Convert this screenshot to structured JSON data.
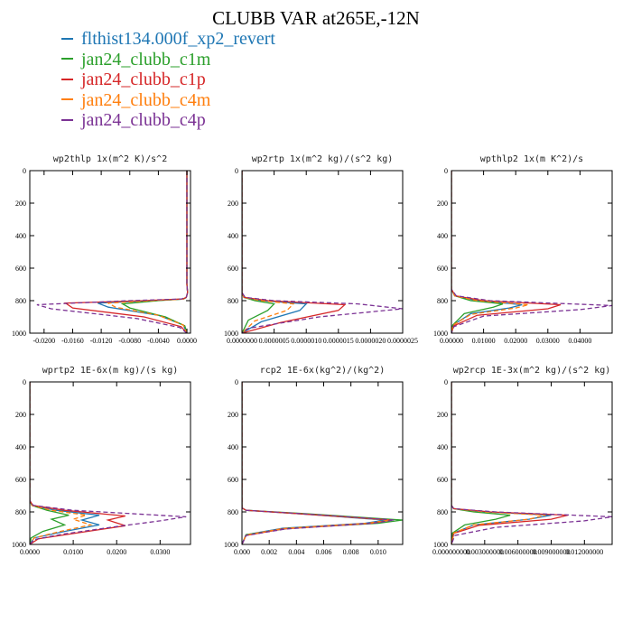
{
  "title": "CLUBB VAR at265E,-12N",
  "legend": [
    {
      "label": "flthist134.000f_xp2_revert",
      "color": "#1f77b4",
      "style": "solid"
    },
    {
      "label": "jan24_clubb_c1m",
      "color": "#2ca02c",
      "style": "solid"
    },
    {
      "label": "jan24_clubb_c1p",
      "color": "#d62728",
      "style": "solid"
    },
    {
      "label": "jan24_clubb_c4m",
      "color": "#ff7f0e",
      "style": "dashed"
    },
    {
      "label": "jan24_clubb_c4p",
      "color": "#7b3294",
      "style": "dashed"
    }
  ],
  "chart_data": [
    {
      "type": "line",
      "title": "wp2thlp  1x(m^2 K)/s^2",
      "xlim": [
        -0.022,
        0.0005
      ],
      "ylim": [
        1000,
        0
      ],
      "yticks": [
        0,
        200,
        400,
        600,
        800,
        1000
      ],
      "xticks": [
        -0.02,
        -0.016,
        -0.012,
        -0.008,
        -0.004,
        0.0
      ],
      "xtick_labels": [
        "-0.0200",
        "-0.0160",
        "-0.0120",
        "-0.0080",
        "-0.0040",
        "0.0000"
      ],
      "series": [
        {
          "name": "flthist134.000f_xp2_revert",
          "x": [
            0,
            0,
            0.0001,
            -0.0001,
            -0.0005,
            -0.005,
            -0.0125,
            -0.011,
            -0.004,
            -0.0005,
            0
          ],
          "y": [
            0,
            700,
            750,
            780,
            790,
            800,
            815,
            840,
            890,
            950,
            1000
          ]
        },
        {
          "name": "jan24_clubb_c1m",
          "x": [
            0,
            0,
            0.0001,
            -0.0001,
            -0.0005,
            -0.004,
            -0.009,
            -0.008,
            -0.003,
            -0.0003,
            0
          ],
          "y": [
            0,
            700,
            750,
            780,
            790,
            800,
            820,
            845,
            900,
            955,
            1000
          ]
        },
        {
          "name": "jan24_clubb_c1p",
          "x": [
            0,
            0,
            0.0001,
            -0.0001,
            -0.0006,
            -0.006,
            -0.017,
            -0.016,
            -0.006,
            -0.0008,
            0
          ],
          "y": [
            0,
            700,
            750,
            780,
            790,
            800,
            815,
            845,
            900,
            960,
            1000
          ]
        },
        {
          "name": "jan24_clubb_c4m",
          "x": [
            0,
            0,
            0.0001,
            -0.0001,
            -0.0005,
            -0.005,
            -0.011,
            -0.01,
            -0.004,
            -0.0005,
            0
          ],
          "y": [
            0,
            700,
            750,
            780,
            790,
            800,
            815,
            840,
            890,
            950,
            1000
          ]
        },
        {
          "name": "jan24_clubb_c4p",
          "x": [
            0,
            0,
            0.0001,
            -0.0001,
            -0.0008,
            -0.008,
            -0.021,
            -0.019,
            -0.007,
            -0.001,
            0
          ],
          "y": [
            0,
            700,
            750,
            780,
            790,
            800,
            825,
            850,
            910,
            965,
            1000
          ]
        }
      ]
    },
    {
      "type": "line",
      "title": "wp2rtp  1x(m^2 kg)/(s^2 kg)",
      "xlim": [
        0,
        2.5e-06
      ],
      "ylim": [
        1000,
        0
      ],
      "yticks": [
        0,
        200,
        400,
        600,
        800,
        1000
      ],
      "xticks": [
        0,
        5e-07,
        1e-06,
        1.5e-06,
        2e-06,
        2.5e-06
      ],
      "xtick_labels": [
        "0.0000000",
        "0.0000005",
        "0.0000010",
        "0.0000015",
        "0.0000020",
        "0.0000025"
      ],
      "series": [
        {
          "name": "flthist134.000f_xp2_revert",
          "x": [
            0,
            0,
            3e-08,
            3e-07,
            1e-06,
            9e-07,
            3e-07,
            0
          ],
          "y": [
            0,
            750,
            780,
            800,
            820,
            860,
            930,
            1000
          ]
        },
        {
          "name": "jan24_clubb_c1m",
          "x": [
            0,
            0,
            3e-08,
            2e-07,
            5e-07,
            4e-07,
            1e-07,
            0
          ],
          "y": [
            0,
            750,
            780,
            800,
            820,
            860,
            920,
            1000
          ]
        },
        {
          "name": "jan24_clubb_c1p",
          "x": [
            0,
            0,
            4e-08,
            4e-07,
            1.6e-06,
            1.5e-06,
            6e-07,
            0
          ],
          "y": [
            0,
            750,
            780,
            800,
            825,
            860,
            935,
            1000
          ]
        },
        {
          "name": "jan24_clubb_c4m",
          "x": [
            0,
            0,
            3e-08,
            3e-07,
            8e-07,
            7e-07,
            2e-07,
            0
          ],
          "y": [
            0,
            750,
            780,
            800,
            820,
            860,
            925,
            1000
          ]
        },
        {
          "name": "jan24_clubb_c4p",
          "x": [
            0,
            0,
            5e-08,
            5e-07,
            1.8e-06,
            2.5e-06,
            1.2e-06,
            1e-07,
            0
          ],
          "y": [
            0,
            750,
            780,
            800,
            820,
            850,
            900,
            970,
            1000
          ]
        }
      ]
    },
    {
      "type": "line",
      "title": "wpthlp2  1x(m K^2)/s",
      "xlim": [
        0,
        0.05
      ],
      "ylim": [
        1000,
        0
      ],
      "yticks": [
        0,
        200,
        400,
        600,
        800,
        1000
      ],
      "xticks": [
        0,
        0.01,
        0.02,
        0.03,
        0.04
      ],
      "xtick_labels": [
        "0.00000",
        "0.01000",
        "0.02000",
        "0.03000",
        "0.04000"
      ],
      "series": [
        {
          "name": "flthist134.000f_xp2_revert",
          "x": [
            0,
            0,
            0.001,
            0.008,
            0.022,
            0.018,
            0.006,
            0.0005,
            0
          ],
          "y": [
            0,
            730,
            770,
            800,
            825,
            845,
            880,
            950,
            1000
          ]
        },
        {
          "name": "jan24_clubb_c1m",
          "x": [
            0,
            0,
            0.001,
            0.006,
            0.016,
            0.013,
            0.004,
            0.0004,
            0
          ],
          "y": [
            0,
            730,
            770,
            800,
            820,
            840,
            880,
            950,
            1000
          ]
        },
        {
          "name": "jan24_clubb_c1p",
          "x": [
            0,
            0,
            0.0012,
            0.01,
            0.034,
            0.03,
            0.008,
            0.0007,
            0
          ],
          "y": [
            0,
            730,
            770,
            800,
            825,
            850,
            890,
            955,
            1000
          ]
        },
        {
          "name": "jan24_clubb_c4m",
          "x": [
            0,
            0,
            0.001,
            0.008,
            0.024,
            0.02,
            0.006,
            0.0005,
            0
          ],
          "y": [
            0,
            730,
            770,
            800,
            825,
            845,
            885,
            950,
            1000
          ]
        },
        {
          "name": "jan24_clubb_c4p",
          "x": [
            0,
            0,
            0.0015,
            0.012,
            0.05,
            0.04,
            0.01,
            0.0008,
            0
          ],
          "y": [
            0,
            730,
            770,
            800,
            830,
            855,
            895,
            960,
            1000
          ]
        }
      ]
    },
    {
      "type": "line",
      "title": "wprtp2  1E-6x(m kg)/(s kg)",
      "xlim": [
        0,
        0.037
      ],
      "ylim": [
        1000,
        0
      ],
      "yticks": [
        0,
        200,
        400,
        600,
        800,
        1000
      ],
      "xticks": [
        0,
        0.01,
        0.02,
        0.03
      ],
      "xtick_labels": [
        "0.0000",
        "0.0100",
        "0.0200",
        "0.0300"
      ],
      "series": [
        {
          "name": "flthist134.000f_xp2_revert",
          "x": [
            0,
            0,
            0.0005,
            0.006,
            0.016,
            0.012,
            0.016,
            0.008,
            0.001,
            0
          ],
          "y": [
            0,
            730,
            760,
            790,
            820,
            850,
            880,
            920,
            960,
            1000
          ]
        },
        {
          "name": "jan24_clubb_c1m",
          "x": [
            0,
            0,
            0.0005,
            0.004,
            0.009,
            0.005,
            0.008,
            0.003,
            0.0003,
            0
          ],
          "y": [
            0,
            730,
            760,
            790,
            820,
            845,
            880,
            920,
            960,
            1000
          ]
        },
        {
          "name": "jan24_clubb_c1p",
          "x": [
            0,
            0,
            0.0007,
            0.008,
            0.022,
            0.018,
            0.022,
            0.012,
            0.002,
            0
          ],
          "y": [
            0,
            730,
            760,
            790,
            825,
            850,
            885,
            925,
            965,
            1000
          ]
        },
        {
          "name": "jan24_clubb_c4m",
          "x": [
            0,
            0,
            0.0005,
            0.005,
            0.013,
            0.01,
            0.014,
            0.007,
            0.001,
            0
          ],
          "y": [
            0,
            730,
            760,
            790,
            820,
            845,
            880,
            920,
            960,
            1000
          ]
        },
        {
          "name": "jan24_clubb_c4p",
          "x": [
            0,
            0,
            0.0008,
            0.01,
            0.036,
            0.03,
            0.02,
            0.008,
            0.001,
            0
          ],
          "y": [
            0,
            730,
            760,
            790,
            830,
            855,
            890,
            935,
            970,
            1000
          ]
        }
      ]
    },
    {
      "type": "line",
      "title": "rcp2  1E-6x(kg^2)/(kg^2)",
      "xlim": [
        0,
        0.0118
      ],
      "ylim": [
        1000,
        0
      ],
      "yticks": [
        0,
        200,
        400,
        600,
        800,
        1000
      ],
      "xticks": [
        0,
        0.002,
        0.004,
        0.006,
        0.008,
        0.01
      ],
      "xtick_labels": [
        "0.000",
        "0.002",
        "0.004",
        "0.006",
        "0.008",
        "0.010"
      ],
      "series": [
        {
          "name": "flthist134.000f_xp2_revert",
          "x": [
            0,
            0,
            0.0003,
            0.004,
            0.0105,
            0.009,
            0.003,
            0.0003,
            0
          ],
          "y": [
            0,
            775,
            790,
            810,
            850,
            870,
            900,
            940,
            1000
          ]
        },
        {
          "name": "jan24_clubb_c1m",
          "x": [
            0,
            0,
            0.0003,
            0.0045,
            0.0118,
            0.01,
            0.0035,
            0.0003,
            0
          ],
          "y": [
            0,
            775,
            790,
            810,
            850,
            870,
            900,
            940,
            1000
          ]
        },
        {
          "name": "jan24_clubb_c1p",
          "x": [
            0,
            0,
            0.0003,
            0.004,
            0.011,
            0.0095,
            0.003,
            0.0003,
            0
          ],
          "y": [
            0,
            775,
            790,
            810,
            850,
            870,
            905,
            945,
            1000
          ]
        },
        {
          "name": "jan24_clubb_c4m",
          "x": [
            0,
            0,
            0.0003,
            0.004,
            0.0108,
            0.0092,
            0.003,
            0.0003,
            0
          ],
          "y": [
            0,
            775,
            790,
            810,
            850,
            870,
            902,
            942,
            1000
          ]
        },
        {
          "name": "jan24_clubb_c4p",
          "x": [
            0,
            0,
            0.0003,
            0.0042,
            0.0112,
            0.0096,
            0.0032,
            0.0003,
            0
          ],
          "y": [
            0,
            775,
            790,
            810,
            850,
            870,
            905,
            945,
            1000
          ]
        }
      ]
    },
    {
      "type": "line",
      "title": "wp2rcp  1E-3x(m^2 kg)/(s^2 kg)",
      "xlim": [
        0,
        0.0145
      ],
      "ylim": [
        1000,
        0
      ],
      "yticks": [
        0,
        200,
        400,
        600,
        800,
        1000
      ],
      "xticks": [
        0,
        0.003,
        0.006,
        0.009,
        0.012
      ],
      "xtick_labels": [
        "0.000000000",
        "0.003000000",
        "0.006000000",
        "0.009000000",
        "0.012000000"
      ],
      "series": [
        {
          "name": "flthist134.000f_xp2_revert",
          "x": [
            0,
            0,
            0.0002,
            0.003,
            0.009,
            0.007,
            0.002,
            0.0002,
            0
          ],
          "y": [
            0,
            760,
            780,
            800,
            820,
            845,
            880,
            930,
            1000
          ]
        },
        {
          "name": "jan24_clubb_c1m",
          "x": [
            0,
            0,
            0.0002,
            0.002,
            0.0053,
            0.004,
            0.0012,
            0.0001,
            0
          ],
          "y": [
            0,
            760,
            780,
            800,
            820,
            845,
            880,
            930,
            1000
          ]
        },
        {
          "name": "jan24_clubb_c1p",
          "x": [
            0,
            0,
            0.0002,
            0.0035,
            0.0105,
            0.009,
            0.0025,
            0.0002,
            0
          ],
          "y": [
            0,
            760,
            780,
            800,
            820,
            845,
            882,
            932,
            1000
          ]
        },
        {
          "name": "jan24_clubb_c4m",
          "x": [
            0,
            0,
            0.0002,
            0.003,
            0.0085,
            0.007,
            0.002,
            0.0002,
            0
          ],
          "y": [
            0,
            760,
            780,
            800,
            820,
            845,
            880,
            930,
            1000
          ]
        },
        {
          "name": "jan24_clubb_c4p",
          "x": [
            0,
            0,
            0.0002,
            0.004,
            0.0145,
            0.012,
            0.004,
            0.0003,
            0
          ],
          "y": [
            0,
            760,
            780,
            800,
            830,
            855,
            895,
            945,
            1000
          ]
        }
      ]
    }
  ]
}
